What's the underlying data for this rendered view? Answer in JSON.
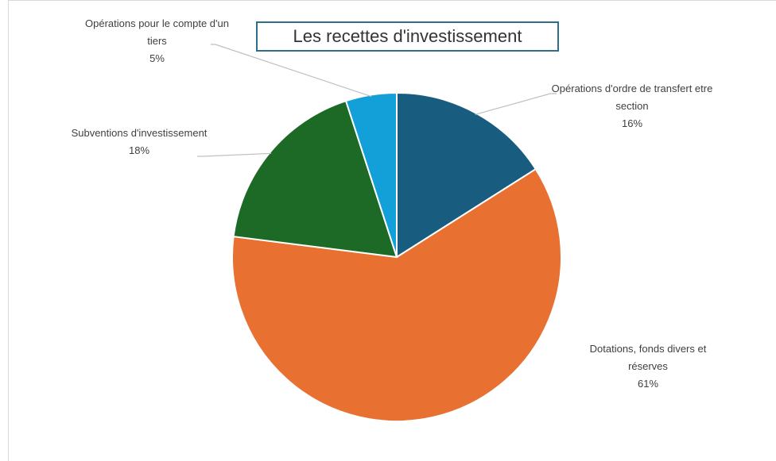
{
  "chart_data": {
    "type": "pie",
    "title": "Les recettes d'investissement",
    "categories": [
      "Opérations d'ordre de transfert etre section",
      "Dotations, fonds divers et réserves",
      "Subventions d'investissement",
      "Opérations pour le compte d'un tiers"
    ],
    "values": [
      16,
      61,
      18,
      5
    ],
    "value_labels": [
      "16%",
      "61%",
      "18%",
      "5%"
    ],
    "colors": [
      "#185d80",
      "#e87132",
      "#1c6a26",
      "#13a0d9"
    ]
  }
}
